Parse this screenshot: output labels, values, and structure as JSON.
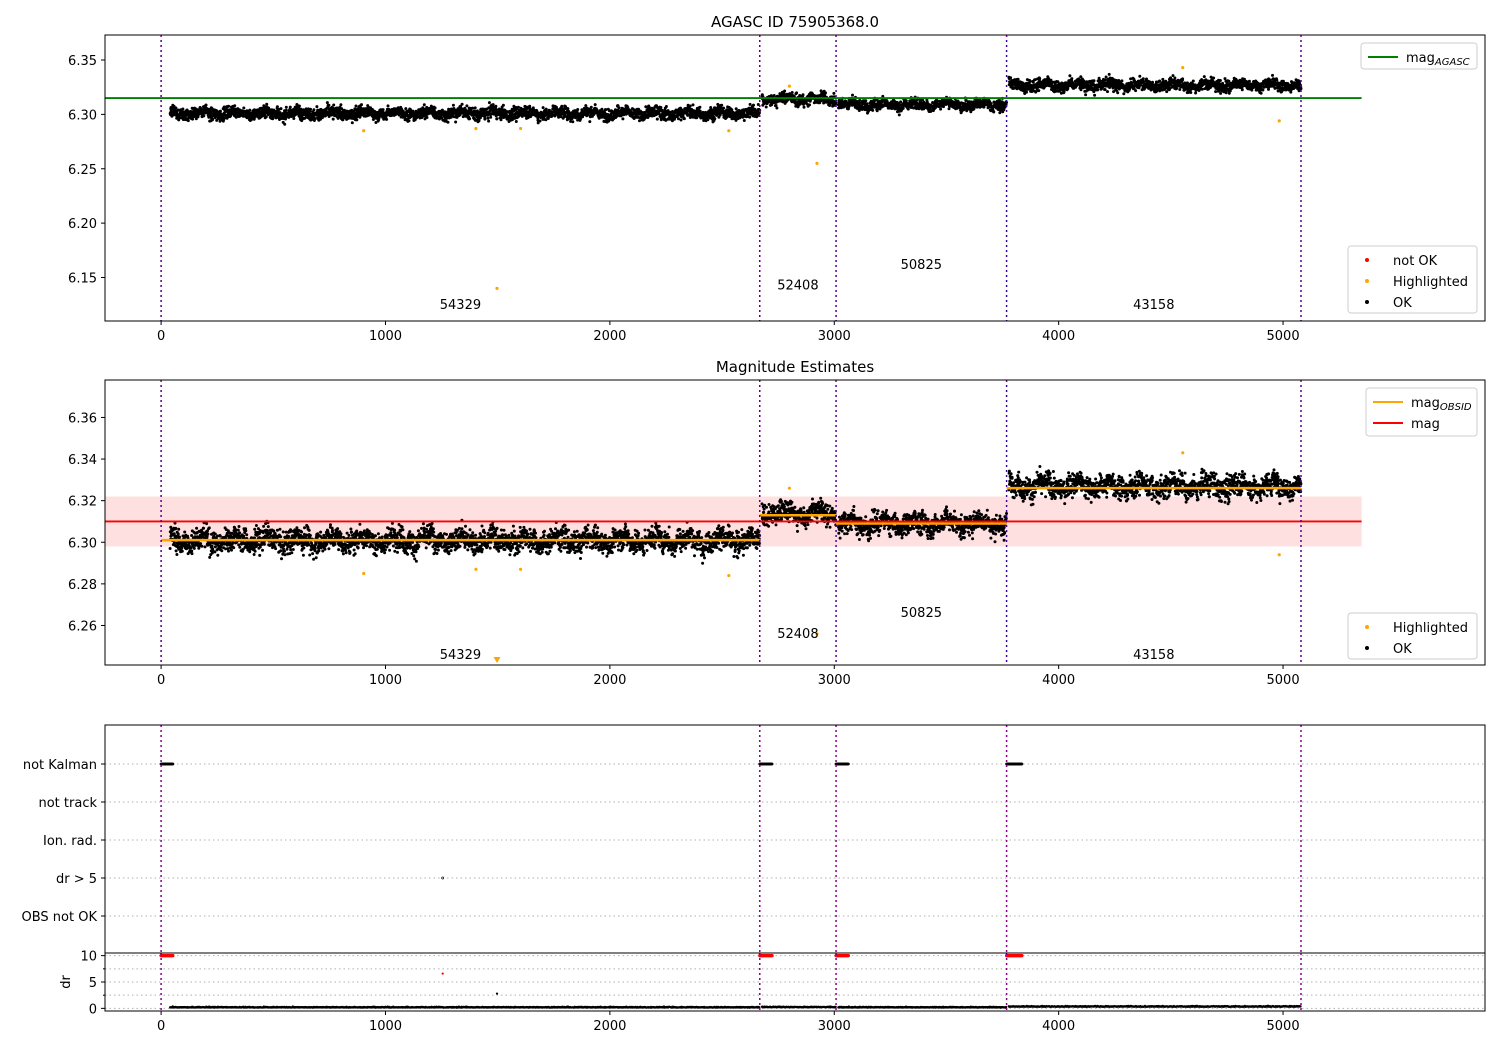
{
  "chart_data": [
    {
      "type": "scatter",
      "title": "AGASC ID 75905368.0",
      "xlabel": "",
      "ylabel": "",
      "xlim": [
        -250,
        5900
      ],
      "ylim": [
        6.11,
        6.373
      ],
      "x_ticks": [
        0,
        1000,
        2000,
        3000,
        4000,
        5000
      ],
      "x_tick_labels": [
        "0",
        "1000",
        "2000",
        "3000",
        "4000",
        "5000"
      ],
      "y_ticks": [
        6.15,
        6.2,
        6.25,
        6.3,
        6.35
      ],
      "y_tick_labels": [
        "6.15",
        "6.20",
        "6.25",
        "6.30",
        "6.35"
      ],
      "obs_boundaries": [
        0,
        2668,
        3008,
        3768,
        5080
      ],
      "obsids": [
        {
          "label": "54329",
          "x": 1334,
          "y": 6.121
        },
        {
          "label": "52408",
          "x": 2838,
          "y": 6.139
        },
        {
          "label": "50825",
          "x": 3388,
          "y": 6.158
        },
        {
          "label": "43158",
          "x": 4424,
          "y": 6.121
        }
      ],
      "reference_line": {
        "name": "mag_AGASC",
        "y": 6.315,
        "x_range": [
          -250,
          5350
        ],
        "color": "#008000"
      },
      "segments": [
        {
          "x0": 40,
          "x1": 2668,
          "mean": 6.301,
          "spread": 0.0046
        },
        {
          "x0": 2678,
          "x1": 3008,
          "mean": 6.314,
          "spread": 0.0042
        },
        {
          "x0": 3018,
          "x1": 3768,
          "mean": 6.309,
          "spread": 0.0042
        },
        {
          "x0": 3778,
          "x1": 5080,
          "mean": 6.327,
          "spread": 0.0045
        }
      ],
      "highlighted_points": [
        {
          "x": 903,
          "y": 6.285
        },
        {
          "x": 1403,
          "y": 6.287
        },
        {
          "x": 1497,
          "y": 6.14
        },
        {
          "x": 1602,
          "y": 6.287
        },
        {
          "x": 2530,
          "y": 6.285
        },
        {
          "x": 2800,
          "y": 6.326
        },
        {
          "x": 2923,
          "y": 6.255
        },
        {
          "x": 4553,
          "y": 6.343
        },
        {
          "x": 4983,
          "y": 6.294
        }
      ],
      "legends": [
        {
          "location": "upper right",
          "items": [
            {
              "label": "mag",
              "subscript": "AGASC",
              "type": "line",
              "color": "#008000"
            }
          ]
        },
        {
          "location": "lower right",
          "items": [
            {
              "label": "not OK",
              "type": "marker",
              "color": "#ff0000"
            },
            {
              "label": "Highlighted",
              "type": "marker",
              "color": "#ffa500"
            },
            {
              "label": "OK",
              "type": "marker",
              "color": "#000000"
            }
          ]
        }
      ]
    },
    {
      "type": "scatter",
      "title": "Magnitude Estimates",
      "xlabel": "",
      "ylabel": "",
      "xlim": [
        -250,
        5900
      ],
      "ylim": [
        6.241,
        6.378
      ],
      "x_ticks": [
        0,
        1000,
        2000,
        3000,
        4000,
        5000
      ],
      "x_tick_labels": [
        "0",
        "1000",
        "2000",
        "3000",
        "4000",
        "5000"
      ],
      "y_ticks": [
        6.26,
        6.28,
        6.3,
        6.32,
        6.34,
        6.36
      ],
      "y_tick_labels": [
        "6.26",
        "6.28",
        "6.30",
        "6.32",
        "6.34",
        "6.36"
      ],
      "obs_boundaries": [
        0,
        2668,
        3008,
        3768,
        5080
      ],
      "obsids": [
        {
          "label": "54329",
          "x": 1334,
          "y": 6.244
        },
        {
          "label": "52408",
          "x": 2838,
          "y": 6.254
        },
        {
          "label": "50825",
          "x": 3388,
          "y": 6.264
        },
        {
          "label": "43158",
          "x": 4424,
          "y": 6.244
        }
      ],
      "mag_line": {
        "name": "mag",
        "y": 6.31,
        "band": [
          6.298,
          6.322
        ],
        "x_range": [
          -250,
          5350
        ],
        "color": "#ff0000"
      },
      "obsid_means": [
        {
          "x0": 0,
          "x1": 2668,
          "y": 6.301
        },
        {
          "x0": 2668,
          "x1": 3008,
          "y": 6.313
        },
        {
          "x0": 3008,
          "x1": 3768,
          "y": 6.309
        },
        {
          "x0": 3768,
          "x1": 5080,
          "y": 6.326
        }
      ],
      "segments": [
        {
          "x0": 40,
          "x1": 2668,
          "mean": 6.301,
          "spread": 0.0046
        },
        {
          "x0": 2678,
          "x1": 3008,
          "mean": 6.314,
          "spread": 0.0042
        },
        {
          "x0": 3018,
          "x1": 3768,
          "mean": 6.309,
          "spread": 0.0042
        },
        {
          "x0": 3778,
          "x1": 5080,
          "mean": 6.327,
          "spread": 0.0045
        }
      ],
      "highlighted_points": [
        {
          "x": 903,
          "y": 6.285
        },
        {
          "x": 1403,
          "y": 6.287
        },
        {
          "x": 1602,
          "y": 6.287
        },
        {
          "x": 2530,
          "y": 6.284
        },
        {
          "x": 2800,
          "y": 6.326
        },
        {
          "x": 2923,
          "y": 6.256
        },
        {
          "x": 4553,
          "y": 6.343
        },
        {
          "x": 4983,
          "y": 6.294
        }
      ],
      "out_of_range_marker": {
        "x": 1497,
        "direction": "below",
        "color": "#ffa500"
      },
      "legends": [
        {
          "location": "upper right",
          "items": [
            {
              "label": "mag",
              "subscript": "OBSID",
              "type": "line",
              "color": "#ffa500"
            },
            {
              "label": "mag",
              "subscript": "",
              "type": "line",
              "color": "#ff0000"
            }
          ]
        },
        {
          "location": "lower right",
          "items": [
            {
              "label": "Highlighted",
              "type": "marker",
              "color": "#ffa500"
            },
            {
              "label": "OK",
              "type": "marker",
              "color": "#000000"
            }
          ]
        }
      ]
    },
    {
      "type": "scatter",
      "title": "",
      "xlabel": "",
      "ylabel": "",
      "xlim": [
        -250,
        5900
      ],
      "categories": [
        "not Kalman",
        "not track",
        "Ion. rad.",
        "dr > 5",
        "OBS not OK"
      ],
      "obs_boundaries": [
        0,
        2668,
        3008,
        3768,
        5080
      ],
      "flag_runs": [
        {
          "category": "not Kalman",
          "x0": 0,
          "x1": 55
        },
        {
          "category": "not Kalman",
          "x0": 2668,
          "x1": 2723
        },
        {
          "category": "not Kalman",
          "x0": 3008,
          "x1": 3063
        },
        {
          "category": "not Kalman",
          "x0": 3768,
          "x1": 3838
        }
      ],
      "flag_points": [
        {
          "category": "dr > 5",
          "x": 1255
        }
      ]
    },
    {
      "type": "scatter",
      "title": "",
      "xlabel": "",
      "ylabel": "dr",
      "xlim": [
        -250,
        5900
      ],
      "ylim": [
        -0.5,
        10.5
      ],
      "x_ticks": [
        0,
        1000,
        2000,
        3000,
        4000,
        5000
      ],
      "x_tick_labels": [
        "0",
        "1000",
        "2000",
        "3000",
        "4000",
        "5000"
      ],
      "y_ticks": [
        0,
        5,
        10
      ],
      "y_tick_labels": [
        "0",
        "5",
        "10"
      ],
      "obs_boundaries": [
        0,
        2668,
        3008,
        3768,
        5080
      ],
      "clipped_value": 10,
      "clipped_runs": [
        {
          "x0": 0,
          "x1": 55
        },
        {
          "x0": 2668,
          "x1": 2723
        },
        {
          "x0": 3008,
          "x1": 3063
        },
        {
          "x0": 3768,
          "x1": 3838
        }
      ],
      "not_ok_points": [
        {
          "x": 1255,
          "y": 6.6
        }
      ],
      "ok_points": [
        {
          "x": 1497,
          "y": 2.8
        }
      ],
      "baseline_segments": [
        {
          "x0": 40,
          "x1": 2668,
          "y": 0.15
        },
        {
          "x0": 2678,
          "x1": 3008,
          "y": 0.2
        },
        {
          "x0": 3018,
          "x1": 3768,
          "y": 0.15
        },
        {
          "x0": 3778,
          "x1": 5080,
          "y": 0.3
        }
      ]
    }
  ]
}
